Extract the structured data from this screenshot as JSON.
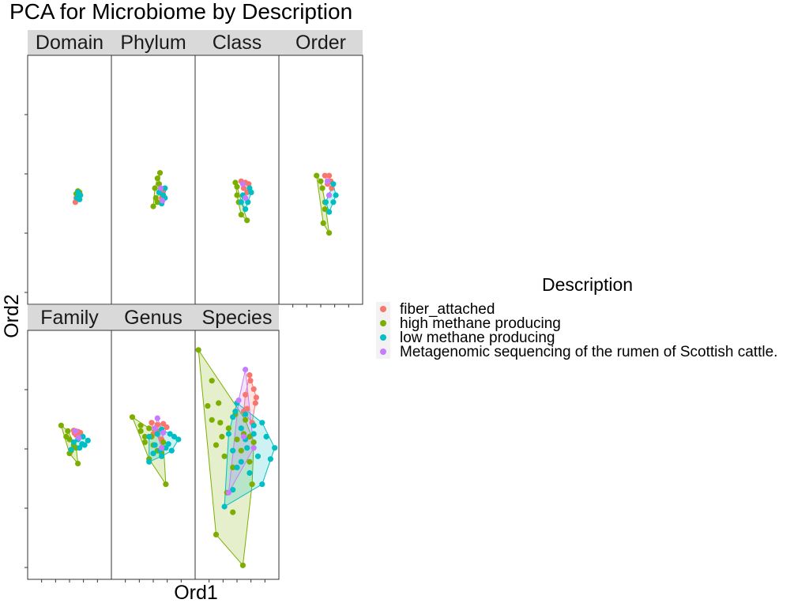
{
  "chart_data": {
    "type": "scatter",
    "title": "PCA for Microbiome by Description",
    "xlabel": "Ord1",
    "ylabel": "Ord2",
    "xlim": [
      0,
      1
    ],
    "ylim": [
      -1,
      1
    ],
    "hull_fill_opacity": 0.2,
    "legend": {
      "title": "Description",
      "placement": "right",
      "entries": [
        {
          "label": "fiber_attached",
          "color": "#F8766D"
        },
        {
          "label": "high methane producing",
          "color": "#7CAE00"
        },
        {
          "label": "low methane producing",
          "color": "#00BFC4"
        },
        {
          "label": "Metagenomic sequencing of the rumen of Scottish cattle.",
          "color": "#C77CFF"
        }
      ]
    },
    "facets": [
      {
        "label": "Domain",
        "series": [
          {
            "group": 0,
            "points": [
              [
                0.58,
                -0.02
              ],
              [
                0.6,
                0.02
              ],
              [
                0.62,
                0.0
              ],
              [
                0.57,
                -0.05
              ]
            ]
          },
          {
            "group": 1,
            "points": [
              [
                0.6,
                0.03
              ],
              [
                0.62,
                0.02
              ],
              [
                0.58,
                0.01
              ],
              [
                0.61,
                -0.01
              ]
            ]
          },
          {
            "group": 2,
            "points": [
              [
                0.6,
                0.02
              ],
              [
                0.63,
                0.0
              ],
              [
                0.59,
                -0.02
              ],
              [
                0.62,
                -0.03
              ]
            ]
          }
        ]
      },
      {
        "label": "Phylum",
        "series": [
          {
            "group": 0,
            "points": [
              [
                0.58,
                0.02
              ],
              [
                0.6,
                -0.02
              ],
              [
                0.62,
                0.03
              ]
            ]
          },
          {
            "group": 1,
            "points": [
              [
                0.58,
                0.16
              ],
              [
                0.55,
                0.12
              ],
              [
                0.52,
                0.05
              ],
              [
                0.55,
                -0.05
              ],
              [
                0.5,
                -0.08
              ],
              [
                0.57,
                0.08
              ],
              [
                0.53,
                -0.02
              ]
            ]
          },
          {
            "group": 2,
            "points": [
              [
                0.62,
                0.0
              ],
              [
                0.64,
                0.05
              ],
              [
                0.6,
                -0.06
              ],
              [
                0.57,
                0.02
              ],
              [
                0.64,
                -0.02
              ]
            ]
          },
          {
            "group": 3,
            "points": [
              [
                0.59,
                0.05
              ],
              [
                0.61,
                -0.04
              ]
            ]
          }
        ]
      },
      {
        "label": "Class",
        "series": [
          {
            "group": 0,
            "points": [
              [
                0.55,
                0.1
              ],
              [
                0.6,
                0.09
              ],
              [
                0.64,
                0.08
              ],
              [
                0.58,
                0.05
              ],
              [
                0.62,
                0.02
              ]
            ]
          },
          {
            "group": 1,
            "points": [
              [
                0.48,
                0.09
              ],
              [
                0.5,
                0.0
              ],
              [
                0.55,
                -0.14
              ],
              [
                0.62,
                -0.18
              ],
              [
                0.52,
                -0.05
              ],
              [
                0.5,
                0.06
              ]
            ]
          },
          {
            "group": 2,
            "points": [
              [
                0.57,
                0.0
              ],
              [
                0.63,
                -0.05
              ],
              [
                0.67,
                0.02
              ],
              [
                0.6,
                -0.1
              ],
              [
                0.55,
                -0.05
              ],
              [
                0.65,
                0.05
              ]
            ]
          },
          {
            "group": 3,
            "points": [
              [
                0.57,
                0.08
              ],
              [
                0.6,
                -0.02
              ]
            ]
          }
        ]
      },
      {
        "label": "Order",
        "series": [
          {
            "group": 0,
            "points": [
              [
                0.55,
                0.14
              ],
              [
                0.6,
                0.14
              ],
              [
                0.62,
                0.1
              ],
              [
                0.58,
                0.08
              ],
              [
                0.63,
                0.05
              ]
            ]
          },
          {
            "group": 1,
            "points": [
              [
                0.45,
                0.14
              ],
              [
                0.52,
                0.05
              ],
              [
                0.55,
                -0.05
              ],
              [
                0.6,
                -0.27
              ],
              [
                0.53,
                -0.2
              ],
              [
                0.5,
                0.1
              ],
              [
                0.55,
                -0.1
              ]
            ]
          },
          {
            "group": 2,
            "points": [
              [
                0.6,
                0.0
              ],
              [
                0.68,
                0.0
              ],
              [
                0.65,
                -0.05
              ],
              [
                0.6,
                -0.12
              ],
              [
                0.56,
                -0.05
              ],
              [
                0.65,
                0.08
              ]
            ]
          },
          {
            "group": 3,
            "points": [
              [
                0.58,
                0.1
              ],
              [
                0.6,
                0.0
              ]
            ]
          }
        ]
      },
      {
        "label": "Family",
        "series": [
          {
            "group": 0,
            "points": [
              [
                0.55,
                0.16
              ],
              [
                0.6,
                0.14
              ],
              [
                0.63,
                0.12
              ],
              [
                0.58,
                0.08
              ],
              [
                0.62,
                0.05
              ],
              [
                0.56,
                0.11
              ]
            ]
          },
          {
            "group": 1,
            "points": [
              [
                0.4,
                0.25
              ],
              [
                0.48,
                0.15
              ],
              [
                0.5,
                0.0
              ],
              [
                0.6,
                -0.43
              ],
              [
                0.52,
                -0.2
              ],
              [
                0.46,
                0.05
              ],
              [
                0.55,
                -0.1
              ],
              [
                0.5,
                -0.25
              ],
              [
                0.58,
                -0.15
              ]
            ]
          },
          {
            "group": 2,
            "points": [
              [
                0.6,
                0.0
              ],
              [
                0.72,
                -0.02
              ],
              [
                0.68,
                -0.1
              ],
              [
                0.62,
                -0.15
              ],
              [
                0.55,
                -0.05
              ],
              [
                0.66,
                0.05
              ],
              [
                0.52,
                -0.18
              ],
              [
                0.65,
                -0.08
              ]
            ]
          },
          {
            "group": 3,
            "points": [
              [
                0.57,
                0.15
              ],
              [
                0.61,
                0.03
              ]
            ]
          }
        ]
      },
      {
        "label": "Genus",
        "series": [
          {
            "group": 0,
            "points": [
              [
                0.48,
                0.3
              ],
              [
                0.55,
                0.26
              ],
              [
                0.62,
                0.28
              ],
              [
                0.66,
                0.22
              ],
              [
                0.5,
                0.1
              ],
              [
                0.6,
                0.0
              ],
              [
                0.55,
                0.15
              ]
            ]
          },
          {
            "group": 1,
            "points": [
              [
                0.25,
                0.4
              ],
              [
                0.35,
                0.15
              ],
              [
                0.4,
                -0.05
              ],
              [
                0.65,
                -0.8
              ],
              [
                0.45,
                -0.35
              ],
              [
                0.55,
                -0.2
              ],
              [
                0.35,
                0.25
              ],
              [
                0.4,
                0.05
              ],
              [
                0.5,
                -0.1
              ],
              [
                0.55,
                0.1
              ],
              [
                0.6,
                -0.25
              ],
              [
                0.48,
                0.05
              ],
              [
                0.62,
                -0.05
              ],
              [
                0.45,
                0.2
              ]
            ]
          },
          {
            "group": 2,
            "points": [
              [
                0.45,
                0.05
              ],
              [
                0.8,
                0.0
              ],
              [
                0.65,
                -0.15
              ],
              [
                0.6,
                -0.3
              ],
              [
                0.45,
                -0.4
              ],
              [
                0.55,
                0.1
              ],
              [
                0.7,
                0.1
              ],
              [
                0.52,
                -0.1
              ],
              [
                0.72,
                -0.2
              ],
              [
                0.6,
                0.18
              ],
              [
                0.68,
                -0.08
              ],
              [
                0.5,
                -0.25
              ],
              [
                0.75,
                0.05
              ],
              [
                0.58,
                -0.2
              ]
            ]
          },
          {
            "group": 3,
            "points": [
              [
                0.55,
                0.38
              ],
              [
                0.6,
                -0.15
              ],
              [
                0.62,
                0.12
              ],
              [
                0.52,
                0.2
              ]
            ]
          }
        ]
      },
      {
        "label": "Species",
        "series": [
          {
            "group": 0,
            "points": [
              [
                0.65,
                1.15
              ],
              [
                0.7,
                0.9
              ],
              [
                0.72,
                0.65
              ],
              [
                0.6,
                0.8
              ],
              [
                0.62,
                0.55
              ],
              [
                0.68,
                0.3
              ],
              [
                0.73,
                0.75
              ],
              [
                0.66,
                1.05
              ],
              [
                0.58,
                0.5
              ]
            ]
          },
          {
            "group": 1,
            "points": [
              [
                0.04,
                1.6
              ],
              [
                0.25,
                -1.7
              ],
              [
                0.57,
                -2.25
              ],
              [
                0.68,
                -0.8
              ],
              [
                0.2,
                1.05
              ],
              [
                0.15,
                0.6
              ],
              [
                0.3,
                0.3
              ],
              [
                0.25,
                -0.1
              ],
              [
                0.35,
                -0.3
              ],
              [
                0.4,
                0.2
              ],
              [
                0.45,
                -0.5
              ],
              [
                0.6,
                0.35
              ],
              [
                0.55,
                -0.2
              ],
              [
                0.5,
                0.0
              ],
              [
                0.65,
                -0.4
              ],
              [
                0.38,
                -0.95
              ],
              [
                0.28,
                0.65
              ],
              [
                0.48,
                0.45
              ],
              [
                0.7,
                -0.05
              ],
              [
                0.2,
                0.35
              ],
              [
                0.45,
                -1.3
              ],
              [
                0.58,
                0.1
              ],
              [
                0.65,
                0.05
              ],
              [
                0.32,
                0.05
              ]
            ]
          },
          {
            "group": 2,
            "points": [
              [
                0.5,
                0.65
              ],
              [
                0.95,
                -0.15
              ],
              [
                0.8,
                -0.8
              ],
              [
                0.35,
                -1.2
              ],
              [
                0.45,
                -0.9
              ],
              [
                0.85,
                0.05
              ],
              [
                0.7,
                0.25
              ],
              [
                0.6,
                0.45
              ],
              [
                0.45,
                0.4
              ],
              [
                0.55,
                0.2
              ],
              [
                0.75,
                -0.3
              ],
              [
                0.5,
                -0.5
              ],
              [
                0.4,
                0.1
              ],
              [
                0.65,
                -0.6
              ],
              [
                0.9,
                -0.35
              ],
              [
                0.6,
                0.0
              ],
              [
                0.45,
                -0.2
              ],
              [
                0.7,
                0.1
              ],
              [
                0.55,
                -0.4
              ],
              [
                0.8,
                0.3
              ],
              [
                0.48,
                0.5
              ],
              [
                0.62,
                -0.15
              ]
            ]
          },
          {
            "group": 3,
            "points": [
              [
                0.6,
                1.25
              ],
              [
                0.4,
                -0.95
              ],
              [
                0.52,
                0.7
              ],
              [
                0.58,
                0.05
              ],
              [
                0.7,
                -0.15
              ]
            ]
          }
        ]
      }
    ]
  }
}
